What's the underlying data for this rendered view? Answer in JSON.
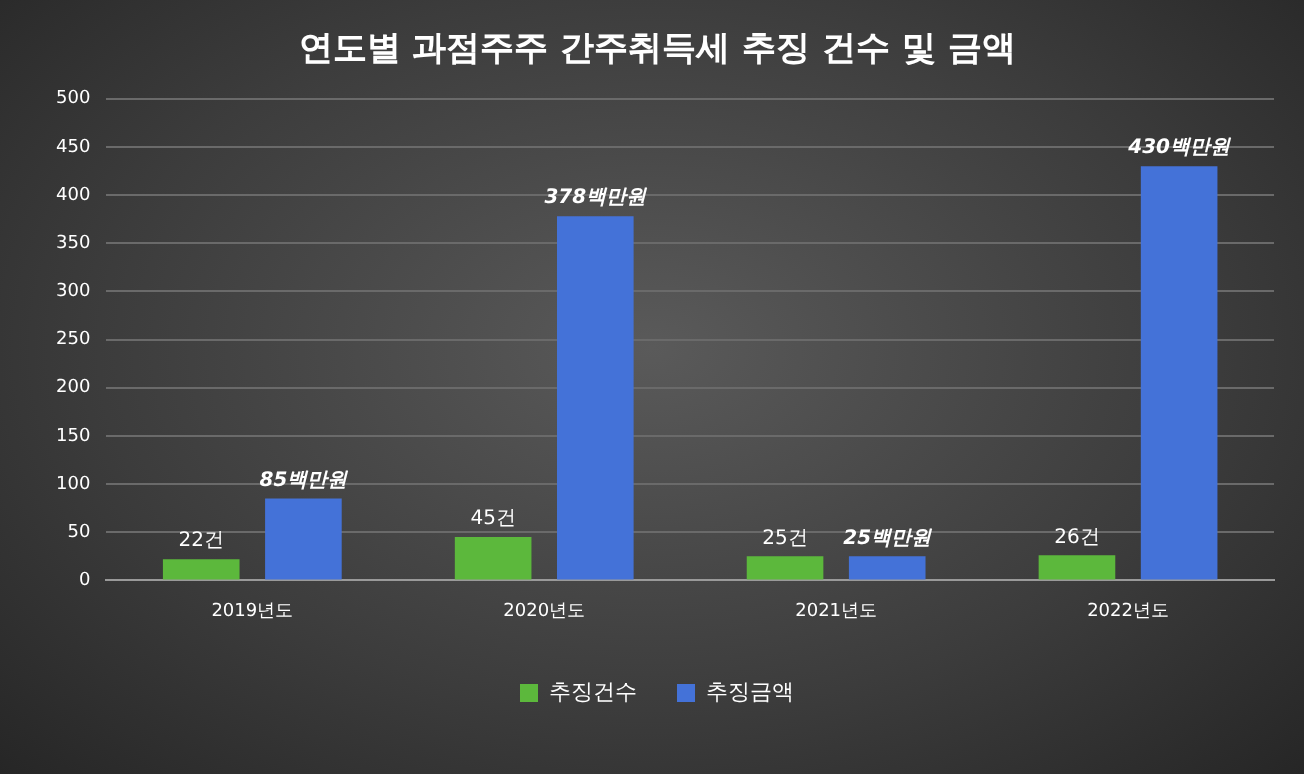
{
  "chart_data": {
    "type": "bar",
    "title": "연도별 과점주주 간주취득세 추징 건수 및 금액",
    "categories": [
      "2019년도",
      "2020년도",
      "2021년도",
      "2022년도"
    ],
    "series": [
      {
        "name": "추징건수",
        "color": "#5cb83c",
        "values": [
          22,
          45,
          25,
          26
        ],
        "value_labels": [
          "22건",
          "45건",
          "25건",
          "26건"
        ]
      },
      {
        "name": "추징금액",
        "color": "#4472d8",
        "values": [
          85,
          378,
          25,
          430
        ],
        "value_labels": [
          "85백만원",
          "378백만원",
          "25백만원",
          "430백만원"
        ]
      }
    ],
    "ylim": [
      0,
      500
    ],
    "yticks": [
      0,
      50,
      100,
      150,
      200,
      250,
      300,
      350,
      400,
      450,
      500
    ],
    "grid": "y",
    "legend": "bottom"
  }
}
